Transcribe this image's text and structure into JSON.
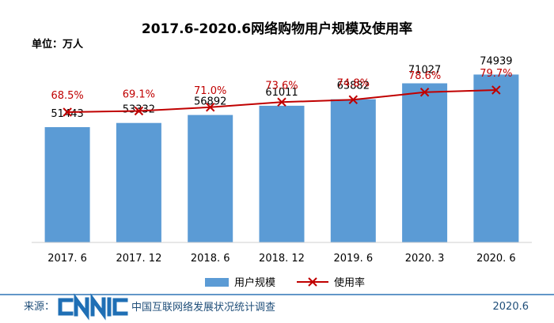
{
  "chart_data": {
    "type": "bar",
    "title": "2017.6-2020.6网络购物用户规模及使用率",
    "unit_label": "单位：万人",
    "categories": [
      "2017. 6",
      "2017. 12",
      "2018. 6",
      "2018. 12",
      "2019. 6",
      "2020. 3",
      "2020. 6"
    ],
    "series": [
      {
        "name": "用户规模",
        "kind": "bar",
        "values": [
          51443,
          53332,
          56892,
          61011,
          63882,
          71027,
          74939
        ],
        "labels": [
          "51443",
          "53332",
          "56892",
          "61011",
          "63882",
          "71027",
          "74939"
        ]
      },
      {
        "name": "使用率",
        "kind": "line",
        "values": [
          68.5,
          69.1,
          71.0,
          73.6,
          74.8,
          78.6,
          79.7
        ],
        "labels": [
          "68.5%",
          "69.1%",
          "71.0%",
          "73.6%",
          "74.8%",
          "78.6%",
          "79.7%"
        ]
      }
    ],
    "ylim": [
      0,
      80000
    ],
    "rate_range": [
      0,
      100
    ],
    "grid": false,
    "legend_position": "bottom-center"
  },
  "footer": {
    "source_label": "来源：",
    "brand_text": "CNNIC",
    "org_name": "中国互联网络发展状况统计调查",
    "date": "2020.6"
  },
  "colors": {
    "bar": "#5b9bd5",
    "line": "#c00000",
    "rate_label": "#c00000",
    "brand": "#1f6fb5",
    "footer_rule": "#2e75b6",
    "axis": "#cfcfcf",
    "text": "#000000"
  }
}
